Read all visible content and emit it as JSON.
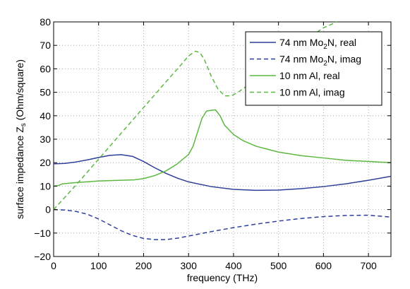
{
  "chart_data": {
    "type": "line",
    "title": "",
    "xlabel": "frequency (THz)",
    "ylabel_main": "surface impedance Z",
    "ylabel_sub": "s",
    "ylabel_suffix": " (Ohm/square)",
    "xlim": [
      0,
      750
    ],
    "ylim": [
      -20,
      80
    ],
    "xticks": [
      0,
      100,
      200,
      300,
      400,
      500,
      600,
      700
    ],
    "yticks": [
      -20,
      -10,
      0,
      10,
      20,
      30,
      40,
      50,
      60,
      70,
      80
    ],
    "grid": true,
    "legend_position": "top-right",
    "colors": {
      "blue": "#2e3f9a",
      "green": "#5cb840"
    },
    "series": [
      {
        "name": "74 nm Mo2N, real",
        "legend_parts": [
          "74 nm Mo",
          "2",
          "N, real"
        ],
        "color": "#2e3f9a",
        "dash": "solid",
        "x": [
          0,
          25,
          50,
          75,
          100,
          125,
          150,
          175,
          200,
          225,
          250,
          275,
          300,
          350,
          400,
          450,
          500,
          550,
          600,
          650,
          700,
          750
        ],
        "y": [
          19.5,
          19.7,
          20.3,
          21.2,
          22.2,
          23.1,
          23.4,
          22.7,
          20.5,
          17.8,
          15.4,
          13.4,
          11.8,
          9.8,
          8.6,
          8.2,
          8.3,
          8.9,
          9.8,
          11.0,
          12.5,
          14.2
        ]
      },
      {
        "name": "74 nm Mo2N, imag",
        "legend_parts": [
          "74 nm Mo",
          "2",
          "N, imag"
        ],
        "color": "#2e3f9a",
        "dash": "dashed",
        "x": [
          0,
          25,
          50,
          75,
          100,
          125,
          150,
          175,
          200,
          225,
          250,
          275,
          300,
          350,
          400,
          450,
          500,
          550,
          600,
          650,
          700,
          750
        ],
        "y": [
          0,
          -0.2,
          -0.8,
          -2.0,
          -4.0,
          -6.5,
          -9.0,
          -11.0,
          -12.3,
          -12.8,
          -12.8,
          -12.2,
          -11.3,
          -9.4,
          -7.7,
          -6.2,
          -4.9,
          -3.8,
          -3.0,
          -2.5,
          -2.4,
          -3.2
        ]
      },
      {
        "name": "10 nm Al, real",
        "legend_parts": [
          "10 nm Al, real"
        ],
        "color": "#5cb840",
        "dash": "solid",
        "x": [
          0,
          10,
          20,
          50,
          100,
          150,
          180,
          200,
          225,
          250,
          275,
          300,
          310,
          320,
          330,
          340,
          350,
          360,
          370,
          380,
          400,
          420,
          450,
          500,
          550,
          600,
          650,
          700,
          750
        ],
        "y": [
          10,
          10.2,
          11.0,
          11.5,
          12.2,
          12.5,
          12.7,
          13.2,
          14.5,
          16.5,
          19.5,
          23.5,
          27.0,
          33.0,
          39.0,
          42.0,
          42.3,
          42.5,
          40.0,
          36.0,
          32.0,
          29.5,
          27.0,
          24.5,
          23.0,
          22.0,
          21.0,
          20.5,
          20.0
        ]
      },
      {
        "name": "10 nm Al, imag",
        "legend_parts": [
          "10 nm Al, imag"
        ],
        "color": "#5cb840",
        "dash": "dashed",
        "x": [
          0,
          50,
          100,
          150,
          200,
          250,
          280,
          300,
          315,
          325,
          335,
          350,
          365,
          380,
          395,
          410,
          450,
          500,
          550,
          600,
          630
        ],
        "y": [
          0,
          10.5,
          21.5,
          32.5,
          43.5,
          54.5,
          61.0,
          65.5,
          67.5,
          67.0,
          64.0,
          57.0,
          51.5,
          48.5,
          48.5,
          50.0,
          55.5,
          63.5,
          71.0,
          77.5,
          80.0
        ]
      }
    ]
  }
}
